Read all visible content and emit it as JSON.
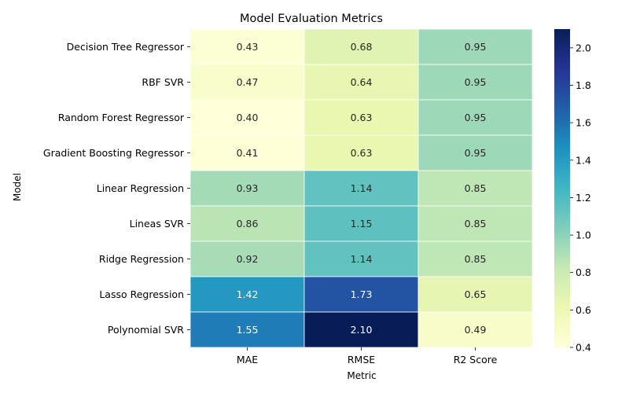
{
  "chart_data": {
    "type": "heatmap",
    "title": "Model Evaluation Metrics",
    "xlabel": "Metric",
    "ylabel": "Model",
    "columns": [
      "MAE",
      "RMSE",
      "R2 Score"
    ],
    "rows": [
      "Decision Tree Regressor",
      "RBF SVR",
      "Random Forest Regressor",
      "Gradient Boosting Regressor",
      "Linear Regression",
      "Lineas SVR",
      "Ridge Regression",
      "Lasso Regression",
      "Polynomial SVR"
    ],
    "values": [
      [
        0.43,
        0.68,
        0.95
      ],
      [
        0.47,
        0.64,
        0.95
      ],
      [
        0.4,
        0.63,
        0.95
      ],
      [
        0.41,
        0.63,
        0.95
      ],
      [
        0.93,
        1.14,
        0.85
      ],
      [
        0.86,
        1.15,
        0.85
      ],
      [
        0.92,
        1.14,
        0.85
      ],
      [
        1.42,
        1.73,
        0.65
      ],
      [
        1.55,
        2.1,
        0.49
      ]
    ],
    "value_labels": [
      [
        "0.43",
        "0.68",
        "0.95"
      ],
      [
        "0.47",
        "0.64",
        "0.95"
      ],
      [
        "0.40",
        "0.63",
        "0.95"
      ],
      [
        "0.41",
        "0.63",
        "0.95"
      ],
      [
        "0.93",
        "1.14",
        "0.85"
      ],
      [
        "0.86",
        "1.15",
        "0.85"
      ],
      [
        "0.92",
        "1.14",
        "0.85"
      ],
      [
        "1.42",
        "1.73",
        "0.65"
      ],
      [
        "1.55",
        "2.10",
        "0.49"
      ]
    ],
    "colormap": "YlGnBu",
    "colormap_stops": [
      "#ffffd9",
      "#edf8b1",
      "#c7e9b4",
      "#7fcdbb",
      "#41b6c4",
      "#1d91c0",
      "#225ea8",
      "#253494",
      "#081d58"
    ],
    "vmin": 0.4,
    "vmax": 2.1,
    "colorbar_ticks": [
      "0.4",
      "0.6",
      "0.8",
      "1.0",
      "1.2",
      "1.4",
      "1.6",
      "1.8",
      "2.0"
    ],
    "grid": false,
    "legend": "colorbar-right"
  }
}
